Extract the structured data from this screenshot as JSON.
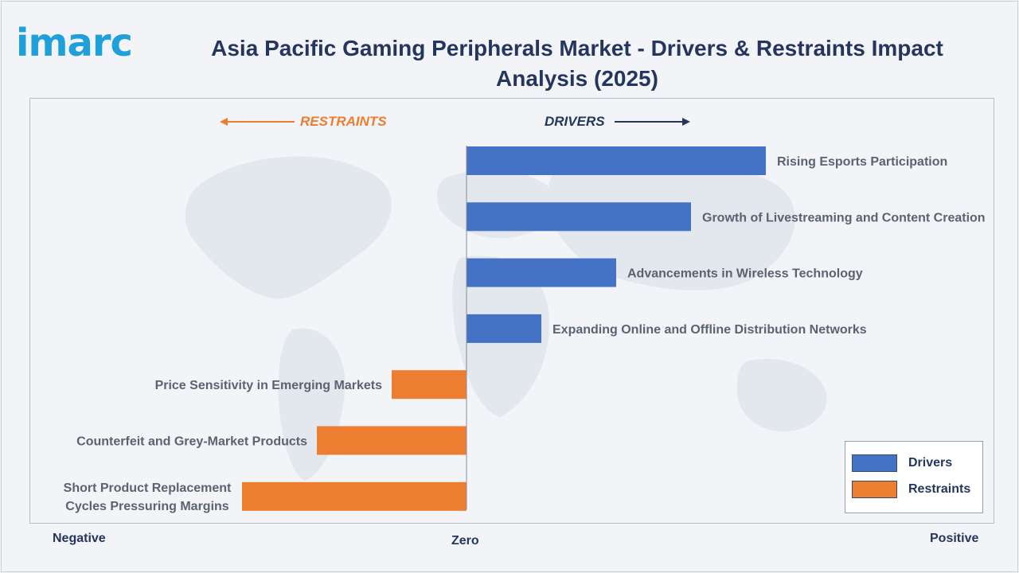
{
  "header": {
    "logo_text": "imarc",
    "title": "Asia Pacific Gaming Peripherals Market - Drivers & Restraints Impact Analysis (2025)"
  },
  "direction_labels": {
    "restraints": "RESTRAINTS",
    "drivers": "DRIVERS"
  },
  "axis": {
    "negative": "Negative",
    "zero": "Zero",
    "positive": "Positive"
  },
  "legend": {
    "drivers": "Drivers",
    "restraints": "Restraints",
    "position": "bottom-right"
  },
  "colors": {
    "drivers": "#4472c4",
    "restraints": "#ed7d31",
    "title": "#25365e",
    "logo": "#1fa0d8"
  },
  "chart_data": {
    "type": "bar",
    "orientation": "horizontal",
    "title": "Asia Pacific Gaming Peripherals Market - Drivers & Restraints Impact Analysis (2025)",
    "xlim": [
      -3,
      4
    ],
    "grid": false,
    "legend_position": "bottom-right",
    "series": [
      {
        "name": "Drivers",
        "categories": [
          "Rising Esports Participation",
          "Growth of Livestreaming and Content Creation",
          "Advancements in Wireless Technology",
          "Expanding Online and Offline Distribution Networks"
        ],
        "values": [
          4,
          3,
          2,
          1
        ]
      },
      {
        "name": "Restraints",
        "categories": [
          "Price Sensitivity in Emerging Markets",
          "Counterfeit and Grey-Market Products",
          "Short Product Replacement Cycles Pressuring Margins"
        ],
        "values": [
          -1,
          -2,
          -3
        ]
      }
    ]
  }
}
